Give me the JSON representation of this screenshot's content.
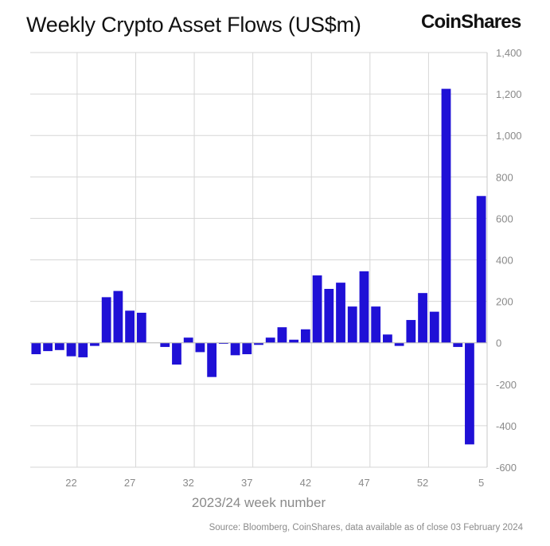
{
  "header": {
    "title": "Weekly Crypto Asset Flows (US$m)",
    "brand": "CoinShares"
  },
  "footer": {
    "source": "Source: Bloomberg, CoinShares, data available as of close 03 February 2024"
  },
  "chart_data": {
    "type": "bar",
    "title": "Weekly Crypto Asset Flows (US$m)",
    "xlabel": "2023/24 week number",
    "ylabel": "",
    "ylim": [
      -600,
      1400
    ],
    "yticks": [
      -600,
      -400,
      -200,
      0,
      200,
      400,
      600,
      800,
      1000,
      1200,
      1400
    ],
    "grid": true,
    "y_axis_position": "right",
    "bar_color": "#1f10d6",
    "categories": [
      "19",
      "20",
      "21",
      "22",
      "23",
      "24",
      "25",
      "26",
      "27",
      "28",
      "29",
      "30",
      "31",
      "32",
      "33",
      "34",
      "35",
      "36",
      "37",
      "38",
      "39",
      "40",
      "41",
      "42",
      "43",
      "44",
      "45",
      "46",
      "47",
      "48",
      "49",
      "50",
      "51",
      "52",
      "1",
      "2",
      "3",
      "4",
      "5"
    ],
    "xtick_labels": [
      "22",
      "27",
      "32",
      "37",
      "42",
      "47",
      "52",
      "5"
    ],
    "values": [
      -55,
      -40,
      -35,
      -65,
      -70,
      -15,
      220,
      250,
      155,
      145,
      0,
      -20,
      -105,
      25,
      -45,
      -165,
      -5,
      -60,
      -55,
      -10,
      25,
      75,
      15,
      65,
      325,
      260,
      290,
      175,
      345,
      175,
      40,
      -15,
      110,
      240,
      150,
      1225,
      -20,
      -490,
      708
    ]
  }
}
